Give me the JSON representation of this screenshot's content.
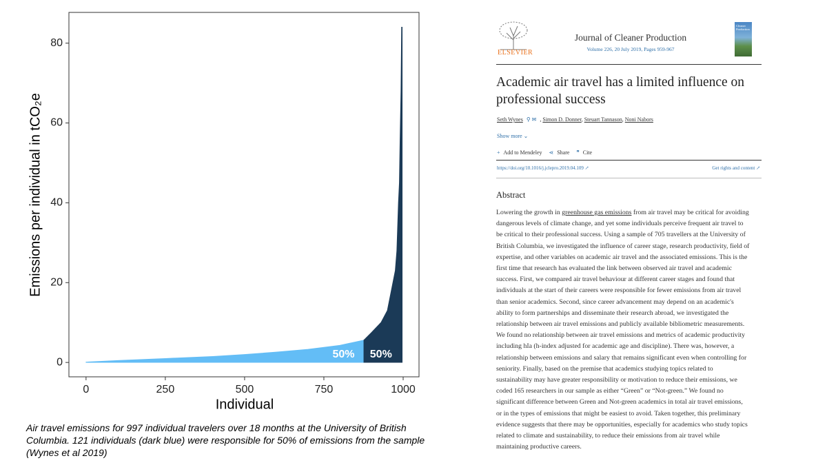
{
  "chart_data": {
    "type": "area",
    "xlabel": "Individual",
    "ylabel": "Emissions per individual in tCO₂e",
    "x": [
      0,
      100,
      250,
      400,
      500,
      600,
      700,
      800,
      876,
      900,
      930,
      950,
      960,
      970,
      975,
      980,
      985,
      988,
      990,
      993,
      995,
      997
    ],
    "series": [
      {
        "color": "#63bdf6",
        "values": [
          0.1,
          0.5,
          1.0,
          1.5,
          2.0,
          2.6,
          3.3,
          4.3,
          5.6,
          null,
          null,
          null,
          null,
          null,
          null,
          null,
          null,
          null,
          null,
          null,
          null,
          null
        ]
      },
      {
        "color": "#1b3a57",
        "values": [
          null,
          null,
          null,
          null,
          null,
          null,
          null,
          null,
          5.6,
          7.5,
          10,
          13,
          17,
          21,
          23,
          28,
          40,
          45,
          55,
          68,
          84,
          84
        ]
      }
    ],
    "annotations": [
      "50%",
      "50%"
    ],
    "xlim": [
      -54,
      1050
    ],
    "xticks": [
      0,
      250,
      500,
      750,
      1000
    ],
    "ylim": [
      -3.6,
      87.7
    ],
    "yticks": [
      0,
      20,
      40,
      60,
      80
    ],
    "grid": false,
    "caption": "Air travel emissions for 997 individual travelers over 18 months at the University of British Columbia. 121 individuals (dark blue) were responsible for 50% of emissions from the sample (Wynes et al 2019)"
  },
  "article": {
    "publisher": "ELSEVIER",
    "journal": "Journal of Cleaner Production",
    "cover_text": "Cleaner Production",
    "issue": "Volume 226, 20 July 2019, Pages 959-967",
    "title": "Academic air travel has a limited influence on professional success",
    "authors": [
      "Seth Wynes",
      "Simon D. Donner",
      "Steuart Tannason",
      "Noni Nabors"
    ],
    "show_more": "Show more",
    "actions": [
      "Add to Mendeley",
      "Share",
      "Cite"
    ],
    "doi": "https://doi.org/10.1016/j.jclepro.2019.04.109",
    "rights": "Get rights and content",
    "abstract_heading": "Abstract",
    "abstract": [
      "Lowering the growth in ",
      "greenhouse gas emissions",
      " from air travel may be critical for avoiding dangerous levels of climate change, and yet some individuals perceive frequent air travel to be critical to their professional success. Using a sample of 705 travellers at the University of British Columbia, we investigated the influence of career stage, research productivity, field of expertise, and other variables on academic air travel and the associated emissions. This is the first time that research has evaluated the link between observed air travel and academic success. First, we compared air travel behaviour at different career stages and found that individuals at the start of their careers were responsible for fewer emissions from air travel than senior academics. Second, since career advancement may depend on an academic's ability to form partnerships and disseminate their research abroad, we investigated the relationship between air travel emissions and publicly available bibliometric measurements. We found no relationship between air travel emissions and metrics of academic productivity including hIa (h-index adjusted for academic age and discipline). There was, however, a relationship between emissions and salary that remains significant even when controlling for seniority. Finally, based on the premise that academics studying topics related to sustainability may have greater responsibility or motivation to reduce their emissions, we coded 165 researchers in our sample as either “Green” or “Not-green.” We found no significant difference between Green and Not-green academics in total air travel emissions, or in the types of emissions that might be easiest to avoid. Taken together, this preliminary evidence suggests that there may be opportunities, especially for academics who study topics related to climate and sustainability, to reduce their emissions from air travel while maintaining productive careers."
    ]
  }
}
